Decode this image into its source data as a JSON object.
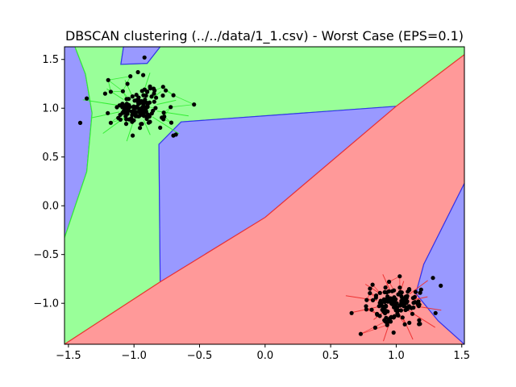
{
  "chart_data": {
    "type": "scatter",
    "title": "DBSCAN clustering (../../data/1_1.csv) - Worst Case (EPS=0.1)",
    "xlabel": "",
    "ylabel": "",
    "xlim": [
      -1.53,
      1.52
    ],
    "ylim": [
      -1.42,
      1.63
    ],
    "xticks": [
      -1.5,
      -1.0,
      -0.5,
      0.0,
      0.5,
      1.0,
      1.5
    ],
    "xtick_labels": [
      "−1.5",
      "−1.0",
      "−0.5",
      "0.0",
      "0.5",
      "1.0",
      "1.5"
    ],
    "yticks": [
      -1.0,
      -0.5,
      0.0,
      0.5,
      1.0,
      1.5
    ],
    "ytick_labels": [
      "−1.0",
      "−0.5",
      "0.0",
      "0.5",
      "1.0",
      "1.5"
    ],
    "grid": false,
    "region_colors": {
      "green": "#99ff99",
      "blue": "#9999ff",
      "red": "#ff9999"
    },
    "edge_colors": {
      "green": "#33ee33",
      "blue": "#3333ee",
      "red": "#ee3333"
    },
    "point_color": "#000000",
    "clusters": [
      {
        "color": "green",
        "center": [
          -0.97,
          1.0
        ],
        "spread": 0.11,
        "count": 130
      },
      {
        "color": "red",
        "center": [
          1.0,
          -1.0
        ],
        "spread": 0.1,
        "count": 130
      }
    ],
    "points": [
      [
        -0.92,
        1.52
      ],
      [
        -0.97,
        1.37
      ],
      [
        -0.93,
        1.34
      ],
      [
        -1.36,
        1.1
      ],
      [
        -1.41,
        0.85
      ],
      [
        -1.22,
        1.15
      ],
      [
        -0.68,
        0.73
      ],
      [
        -0.7,
        0.72
      ],
      [
        -0.8,
        0.8
      ],
      [
        -1.05,
        1.25
      ],
      [
        -0.85,
        1.2
      ],
      [
        -0.78,
        1.13
      ],
      [
        -1.12,
        0.9
      ],
      [
        -1.2,
        0.95
      ],
      [
        -1.01,
        0.72
      ],
      [
        1.3,
        -1.1
      ],
      [
        1.34,
        -0.82
      ],
      [
        1.28,
        -0.74
      ],
      [
        0.77,
        -1.03
      ],
      [
        0.66,
        -1.1
      ],
      [
        0.84,
        -1.25
      ],
      [
        0.98,
        -1.3
      ],
      [
        1.1,
        -1.2
      ],
      [
        0.8,
        -0.85
      ],
      [
        1.19,
        -0.86
      ]
    ],
    "polygons": [
      {
        "color": "blue",
        "points": [
          [
            -1.53,
            1.63
          ],
          [
            -1.53,
            -0.33
          ],
          [
            -1.36,
            0.35
          ],
          [
            -1.32,
            0.95
          ],
          [
            -1.37,
            1.35
          ],
          [
            -1.45,
            1.63
          ]
        ]
      },
      {
        "color": "green",
        "points": [
          [
            -1.53,
            -0.33
          ],
          [
            -1.36,
            0.35
          ],
          [
            -1.32,
            0.95
          ],
          [
            -1.37,
            1.35
          ],
          [
            -1.45,
            1.63
          ],
          [
            -1.08,
            1.63
          ],
          [
            -1.1,
            1.45
          ],
          [
            -0.9,
            1.46
          ],
          [
            -0.8,
            1.63
          ],
          [
            1.52,
            1.63
          ],
          [
            1.52,
            1.55
          ],
          [
            1.0,
            1.02
          ],
          [
            -0.64,
            0.86
          ],
          [
            -0.81,
            0.63
          ],
          [
            -0.8,
            -0.78
          ],
          [
            -1.53,
            -1.42
          ]
        ]
      },
      {
        "color": "blue",
        "points": [
          [
            -1.08,
            1.63
          ],
          [
            -1.1,
            1.45
          ],
          [
            -0.9,
            1.46
          ],
          [
            -0.8,
            1.63
          ]
        ]
      },
      {
        "color": "blue",
        "points": [
          [
            -0.81,
            0.63
          ],
          [
            -0.64,
            0.86
          ],
          [
            1.0,
            1.02
          ],
          [
            0.0,
            -0.12
          ],
          [
            -0.8,
            -0.78
          ]
        ]
      },
      {
        "color": "red",
        "points": [
          [
            -1.53,
            -1.42
          ],
          [
            -0.8,
            -0.78
          ],
          [
            0.0,
            -0.12
          ],
          [
            1.0,
            1.02
          ],
          [
            1.52,
            1.55
          ],
          [
            1.52,
            0.23
          ],
          [
            1.21,
            -0.6
          ],
          [
            1.15,
            -0.9
          ],
          [
            1.32,
            -1.18
          ],
          [
            1.52,
            -1.42
          ]
        ]
      },
      {
        "color": "blue",
        "points": [
          [
            1.52,
            0.23
          ],
          [
            1.21,
            -0.6
          ],
          [
            1.15,
            -0.9
          ],
          [
            1.32,
            -1.18
          ],
          [
            1.52,
            -1.42
          ]
        ]
      }
    ]
  }
}
